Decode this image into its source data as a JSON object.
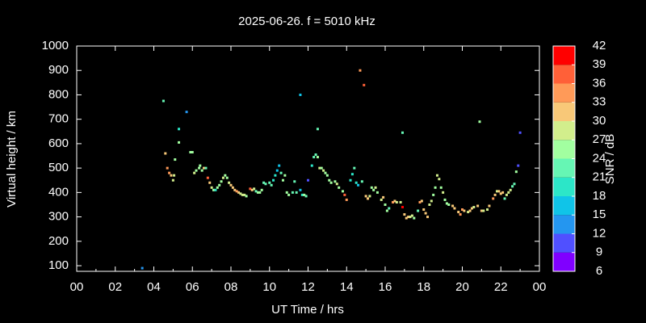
{
  "chart_data": {
    "type": "scatter",
    "title": "2025-06-26. f = 5010 kHz",
    "xlabel": "UT Time / hrs",
    "ylabel": "Virtual height / km",
    "xlim": [
      0,
      24
    ],
    "xticks": [
      {
        "value": 0,
        "label": "00"
      },
      {
        "value": 2,
        "label": "02"
      },
      {
        "value": 4,
        "label": "04"
      },
      {
        "value": 6,
        "label": "06"
      },
      {
        "value": 8,
        "label": "08"
      },
      10,
      12,
      14,
      16,
      18,
      20,
      22,
      {
        "value": 24,
        "label": "00"
      }
    ],
    "ylim": [
      77,
      1000
    ],
    "yticks": [
      100,
      200,
      300,
      400,
      500,
      600,
      700,
      800,
      900,
      1000
    ],
    "x": [
      3.4,
      4.5,
      4.6,
      4.7,
      4.8,
      4.9,
      5.0,
      5.05,
      5.1,
      5.3,
      5.3,
      5.7,
      5.9,
      6.0,
      6.1,
      6.2,
      6.35,
      6.4,
      6.5,
      6.6,
      6.7,
      6.8,
      6.9,
      7.0,
      7.1,
      7.2,
      7.3,
      7.4,
      7.5,
      7.6,
      7.7,
      7.8,
      7.9,
      8.0,
      8.1,
      8.2,
      8.3,
      8.4,
      8.5,
      8.6,
      8.7,
      8.8,
      9.0,
      9.1,
      9.2,
      9.3,
      9.4,
      9.5,
      9.6,
      9.7,
      9.8,
      10.0,
      10.1,
      10.2,
      10.3,
      10.4,
      10.5,
      10.6,
      10.7,
      10.8,
      10.9,
      11.0,
      11.2,
      11.3,
      11.4,
      11.6,
      11.6,
      11.7,
      11.9,
      11.8,
      12.0,
      12.2,
      12.3,
      12.4,
      12.5,
      12.5,
      12.6,
      12.7,
      12.8,
      12.9,
      13.0,
      13.1,
      13.2,
      13.4,
      13.5,
      13.6,
      13.8,
      13.9,
      14.0,
      14.2,
      14.3,
      14.4,
      14.5,
      14.6,
      14.7,
      14.8,
      14.9,
      15.0,
      15.1,
      15.2,
      15.3,
      15.4,
      15.5,
      15.6,
      15.8,
      15.9,
      16.0,
      16.1,
      16.2,
      16.4,
      16.5,
      16.6,
      16.8,
      16.9,
      16.9,
      17.0,
      17.1,
      17.2,
      17.3,
      17.4,
      17.5,
      17.7,
      17.8,
      17.9,
      18.0,
      18.1,
      18.2,
      18.3,
      18.4,
      18.5,
      18.6,
      18.7,
      18.8,
      18.9,
      19.0,
      19.1,
      19.2,
      19.3,
      19.5,
      19.6,
      19.8,
      19.9,
      20.0,
      20.1,
      20.3,
      20.4,
      20.5,
      20.6,
      20.8,
      20.9,
      21.0,
      21.1,
      21.3,
      21.4,
      21.6,
      21.7,
      21.8,
      21.9,
      22.0,
      22.1,
      22.2,
      22.3,
      22.4,
      22.5,
      22.6,
      22.7,
      22.8,
      22.9,
      23.0
    ],
    "values": [
      90,
      775,
      560,
      500,
      480,
      470,
      450,
      470,
      535,
      605,
      660,
      730,
      565,
      565,
      480,
      490,
      500,
      510,
      490,
      500,
      500,
      460,
      440,
      420,
      410,
      410,
      420,
      430,
      445,
      460,
      470,
      460,
      440,
      430,
      420,
      410,
      405,
      400,
      395,
      390,
      390,
      385,
      415,
      410,
      415,
      405,
      400,
      400,
      410,
      440,
      435,
      440,
      430,
      450,
      470,
      490,
      510,
      480,
      450,
      470,
      400,
      390,
      400,
      445,
      400,
      410,
      800,
      390,
      385,
      390,
      450,
      510,
      545,
      555,
      545,
      660,
      500,
      500,
      490,
      480,
      470,
      450,
      440,
      445,
      435,
      420,
      405,
      390,
      370,
      450,
      475,
      500,
      440,
      430,
      900,
      445,
      840,
      385,
      375,
      385,
      420,
      410,
      420,
      400,
      370,
      380,
      350,
      325,
      335,
      360,
      365,
      360,
      360,
      340,
      645,
      310,
      295,
      300,
      300,
      305,
      295,
      325,
      360,
      365,
      330,
      315,
      300,
      350,
      365,
      390,
      420,
      470,
      455,
      420,
      400,
      370,
      355,
      350,
      345,
      335,
      320,
      310,
      330,
      325,
      320,
      325,
      335,
      340,
      345,
      690,
      325,
      325,
      330,
      345,
      375,
      390,
      405,
      405,
      395,
      400,
      375,
      390,
      400,
      410,
      425,
      435,
      485,
      510,
      645
    ],
    "snr": [
      12,
      22,
      31,
      33,
      34,
      31,
      28,
      28,
      25,
      24,
      18,
      14,
      24,
      24,
      27,
      24,
      25,
      24,
      24,
      30,
      22,
      36,
      31,
      28,
      24,
      20,
      24,
      24,
      24,
      27,
      25,
      24,
      27,
      30,
      31,
      30,
      33,
      30,
      28,
      28,
      27,
      24,
      36,
      30,
      27,
      22,
      24,
      24,
      24,
      22,
      22,
      21,
      22,
      19,
      18,
      16,
      17,
      22,
      24,
      24,
      24,
      24,
      22,
      22,
      21,
      16,
      16,
      20,
      22,
      24,
      9,
      19,
      21,
      21,
      24,
      22,
      27,
      25,
      28,
      26,
      24,
      24,
      24,
      24,
      27,
      24,
      25,
      37,
      33,
      18,
      19,
      21,
      20,
      15,
      33,
      22,
      36,
      31,
      30,
      27,
      24,
      24,
      27,
      24,
      28,
      31,
      24,
      24,
      22,
      33,
      30,
      28,
      27,
      39,
      22,
      31,
      31,
      30,
      28,
      27,
      24,
      21,
      33,
      30,
      30,
      31,
      31,
      27,
      27,
      24,
      24,
      27,
      28,
      25,
      27,
      25,
      24,
      24,
      30,
      31,
      31,
      33,
      33,
      30,
      28,
      30,
      30,
      28,
      30,
      26,
      30,
      28,
      27,
      30,
      33,
      31,
      28,
      30,
      31,
      30,
      22,
      28,
      27,
      28,
      22,
      21,
      24,
      11,
      10
    ],
    "colorbar": {
      "label": "SNR / dB",
      "clim": [
        6,
        42
      ],
      "ticks": [
        6,
        9,
        12,
        15,
        18,
        21,
        24,
        27,
        30,
        33,
        36,
        39,
        42
      ],
      "colors": [
        "#8000ff",
        "#5050ff",
        "#2496f0",
        "#10c4e8",
        "#2ce6c8",
        "#66f6b4",
        "#a2ffa0",
        "#d2ee8c",
        "#f8c878",
        "#ff9a58",
        "#ff6038",
        "#ff0000"
      ]
    }
  }
}
